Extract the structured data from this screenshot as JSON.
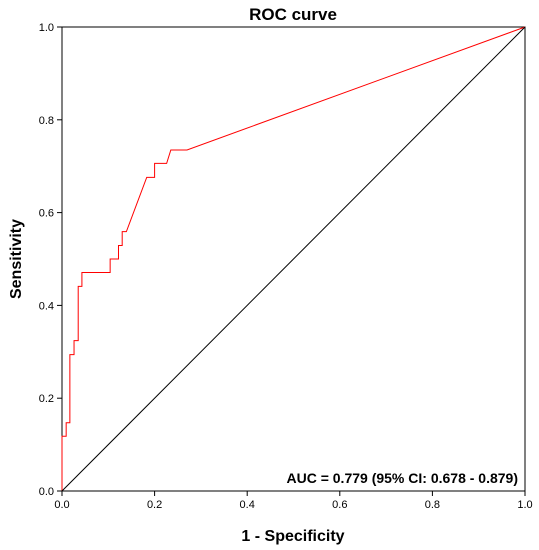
{
  "chart_data": {
    "type": "line",
    "title": "ROC curve",
    "xlabel": "1 - Specificity",
    "ylabel": "Sensitivity",
    "xlim": [
      0,
      1
    ],
    "ylim": [
      0,
      1
    ],
    "xticks": [
      "0.0",
      "0.2",
      "0.4",
      "0.6",
      "0.8",
      "1.0"
    ],
    "yticks": [
      "0.0",
      "0.2",
      "0.4",
      "0.6",
      "0.8",
      "1.0"
    ],
    "grid": false,
    "annotation": "AUC = 0.779 (95% CI: 0.678 - 0.879)",
    "series": [
      {
        "color": "#ff0000",
        "points": [
          [
            0.0,
            0.0
          ],
          [
            0.0,
            0.118
          ],
          [
            0.009,
            0.118
          ],
          [
            0.009,
            0.147
          ],
          [
            0.017,
            0.147
          ],
          [
            0.017,
            0.294
          ],
          [
            0.026,
            0.294
          ],
          [
            0.026,
            0.324
          ],
          [
            0.035,
            0.324
          ],
          [
            0.035,
            0.441
          ],
          [
            0.043,
            0.441
          ],
          [
            0.043,
            0.471
          ],
          [
            0.104,
            0.471
          ],
          [
            0.104,
            0.5
          ],
          [
            0.122,
            0.5
          ],
          [
            0.122,
            0.529
          ],
          [
            0.13,
            0.529
          ],
          [
            0.13,
            0.559
          ],
          [
            0.139,
            0.559
          ],
          [
            0.183,
            0.676
          ],
          [
            0.2,
            0.676
          ],
          [
            0.2,
            0.706
          ],
          [
            0.226,
            0.706
          ],
          [
            0.235,
            0.735
          ],
          [
            0.27,
            0.735
          ],
          [
            1.0,
            1.0
          ]
        ]
      },
      {
        "color": "#000000",
        "points": [
          [
            0,
            0
          ],
          [
            1,
            1
          ]
        ]
      }
    ]
  }
}
